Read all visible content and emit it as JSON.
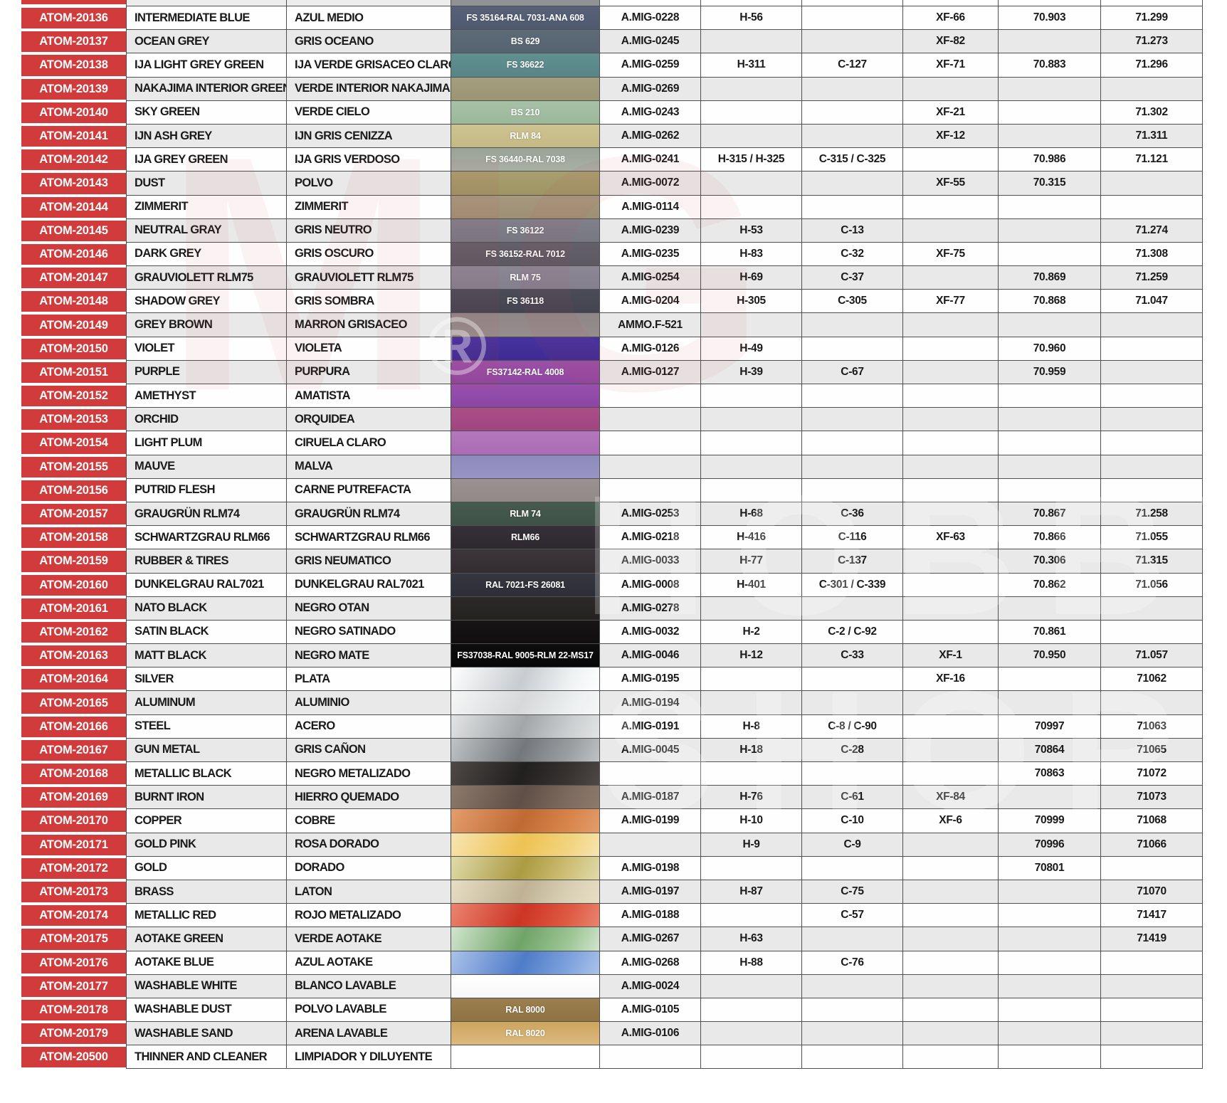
{
  "table": {
    "brand_red": "#d23b3b",
    "stripe_grey": "#e9e9e9",
    "row_white": "#fefefe",
    "border_color": "#4f5052",
    "column_names": [
      "atom-code",
      "name-english",
      "name-spanish",
      "color-swatch",
      "ammo-mig-ref",
      "aqueous-h-ref",
      "mr-color-c-ref",
      "tamiya-xf-ref",
      "vallejo-70-ref",
      "vallejo-71-ref"
    ],
    "top_partial": {
      "swatch_color": "#909294",
      "side_color": "#ededed"
    },
    "watermarks": {
      "mig": "MIG",
      "registered": "®",
      "hobby": "HOBBY",
      "shop": "SHOP"
    },
    "rows": [
      {
        "code": "ATOM-20136",
        "en": "INTERMEDIATE BLUE",
        "es": "AZUL MEDIO",
        "label": "FS 35164-RAL 7031-ANA 608",
        "colors": [
          "#57627a",
          "#4f5a70"
        ],
        "amig": "A.MIG-0228",
        "h": "H-56",
        "c": "",
        "xf": "XF-66",
        "v70": "70.903",
        "v71": "71.299"
      },
      {
        "code": "ATOM-20137",
        "en": "OCEAN GREY",
        "es": "GRIS OCEANO",
        "label": "BS 629",
        "colors": [
          "#5d6b79",
          "#566472"
        ],
        "amig": "A.MIG-0245",
        "h": "",
        "c": "",
        "xf": "XF-82",
        "v70": "",
        "v71": "71.273"
      },
      {
        "code": "ATOM-20138",
        "en": "IJA LIGHT GREY GREEN",
        "es": "IJA VERDE GRISACEO CLARO",
        "label": "FS 36622",
        "colors": [
          "#628f8f",
          "#578588"
        ],
        "amig": "A.MIG-0259",
        "h": "H-311",
        "c": "C-127",
        "xf": "XF-71",
        "v70": "70.883",
        "v71": "71.296"
      },
      {
        "code": "ATOM-20139",
        "en": "NAKAJIMA INTERIOR GREEN",
        "es": "VERDE INTERIOR NAKAJIMA",
        "label": "",
        "colors": [
          "#a39e7e",
          "#9b9574"
        ],
        "amig": "A.MIG-0269",
        "h": "",
        "c": "",
        "xf": "",
        "v70": "",
        "v71": ""
      },
      {
        "code": "ATOM-20140",
        "en": "SKY GREEN",
        "es": "VERDE CIELO",
        "label": "BS 210",
        "colors": [
          "#a6c1a6",
          "#9cb89b"
        ],
        "amig": "A.MIG-0243",
        "h": "",
        "c": "",
        "xf": "XF-21",
        "v70": "",
        "v71": "71.302"
      },
      {
        "code": "ATOM-20141",
        "en": "IJN ASH GREY",
        "es": "IJN GRIS CENIZZA",
        "label": "RLM 84",
        "colors": [
          "#cec492",
          "#c4b983"
        ],
        "amig": "A.MIG-0262",
        "h": "",
        "c": "",
        "xf": "XF-12",
        "v70": "",
        "v71": "71.311"
      },
      {
        "code": "ATOM-20142",
        "en": "IJA GREY GREEN",
        "es": "IJA GRIS VERDOSO",
        "label": "FS 36440-RAL 7038",
        "colors": [
          "#99a398",
          "#a9b0a6"
        ],
        "amig": "A.MIG-0241",
        "h": "H-315 / H-325",
        "c": "C-315 / C-325",
        "xf": "",
        "v70": "70.986",
        "v71": "71.121"
      },
      {
        "code": "ATOM-20143",
        "en": "DUST",
        "es": "POLVO",
        "label": "",
        "colors": [
          "#a89f6f",
          "#9e9464"
        ],
        "amig": "A.MIG-0072",
        "h": "",
        "c": "",
        "xf": "XF-55",
        "v70": "70.315",
        "v71": ""
      },
      {
        "code": "ATOM-20144",
        "en": "ZIMMERIT",
        "es": "ZIMMERIT",
        "label": "",
        "colors": [
          "#a6987f",
          "#9e8f74"
        ],
        "amig": "A.MIG-0114",
        "h": "",
        "c": "",
        "xf": "",
        "v70": "",
        "v71": ""
      },
      {
        "code": "ATOM-20145",
        "en": "NEUTRAL GRAY",
        "es": "GRIS NEUTRO",
        "label": "FS 36122",
        "colors": [
          "#80808a",
          "#787882"
        ],
        "amig": "A.MIG-0239",
        "h": "H-53",
        "c": "C-13",
        "xf": "",
        "v70": "",
        "v71": "71.274"
      },
      {
        "code": "ATOM-20146",
        "en": "DARK GREY",
        "es": "GRIS OSCURO",
        "label": "FS 36152-RAL 7012",
        "colors": [
          "#646069",
          "#5c5962"
        ],
        "amig": "A.MIG-0235",
        "h": "H-83",
        "c": "C-32",
        "xf": "XF-75",
        "v70": "",
        "v71": "71.308"
      },
      {
        "code": "ATOM-20147",
        "en": "GRAUVIOLETT RLM75",
        "es": "GRAUVIOLETT RLM75",
        "label": "RLM 75",
        "colors": [
          "#8c8795",
          "#837f8d"
        ],
        "amig": "A.MIG-0254",
        "h": "H-69",
        "c": "C-37",
        "xf": "",
        "v70": "70.869",
        "v71": "71.259"
      },
      {
        "code": "ATOM-20148",
        "en": "SHADOW GREY",
        "es": "GRIS SOMBRA",
        "label": "FS 36118",
        "colors": [
          "#4b4c58",
          "#434450"
        ],
        "amig": "A.MIG-0204",
        "h": "H-305",
        "c": "C-305",
        "xf": "XF-77",
        "v70": "70.868",
        "v71": "71.047"
      },
      {
        "code": "ATOM-20149",
        "en": "GREY BROWN",
        "es": "MARRON GRISACEO",
        "label": "",
        "colors": [
          "#8f8687",
          "#968d8d"
        ],
        "amig": "AMMO.F-521",
        "h": "",
        "c": "",
        "xf": "",
        "v70": "",
        "v71": ""
      },
      {
        "code": "ATOM-20150",
        "en": "VIOLET",
        "es": "VIOLETA",
        "label": "",
        "colors": [
          "#4733a0",
          "#3e2b92"
        ],
        "amig": "A.MIG-0126",
        "h": "H-49",
        "c": "",
        "xf": "",
        "v70": "70.960",
        "v71": ""
      },
      {
        "code": "ATOM-20151",
        "en": "PURPLE",
        "es": "PURPURA",
        "label": "FS37142-RAL 4008",
        "colors": [
          "#9b51a8",
          "#8f46a0"
        ],
        "amig": "A.MIG-0127",
        "h": "H-39",
        "c": "C-67",
        "xf": "",
        "v70": "70.959",
        "v71": ""
      },
      {
        "code": "ATOM-20152",
        "en": "AMETHYST",
        "es": "AMATISTA",
        "label": "",
        "colors": [
          "#9750ae",
          "#8b46a4"
        ],
        "amig": "",
        "h": "",
        "c": "",
        "xf": "",
        "v70": "",
        "v71": ""
      },
      {
        "code": "ATOM-20153",
        "en": "ORCHID",
        "es": "ORQUIDEA",
        "label": "",
        "colors": [
          "#ab4f89",
          "#a04580"
        ],
        "amig": "",
        "h": "",
        "c": "",
        "xf": "",
        "v70": "",
        "v71": ""
      },
      {
        "code": "ATOM-20154",
        "en": "LIGHT PLUM",
        "es": "CIRUELA CLARO",
        "label": "",
        "colors": [
          "#b377bd",
          "#aa6cb4"
        ],
        "amig": "",
        "h": "",
        "c": "",
        "xf": "",
        "v70": "",
        "v71": ""
      },
      {
        "code": "ATOM-20155",
        "en": "MAUVE",
        "es": "MALVA",
        "label": "",
        "colors": [
          "#8d8abc",
          "#9894c6"
        ],
        "amig": "",
        "h": "",
        "c": "",
        "xf": "",
        "v70": "",
        "v71": ""
      },
      {
        "code": "ATOM-20156",
        "en": "PUTRID FLESH",
        "es": "CARNE PUTREFACTA",
        "label": "",
        "colors": [
          "#9a9190",
          "#918888"
        ],
        "amig": "",
        "h": "",
        "c": "",
        "xf": "",
        "v70": "",
        "v71": ""
      },
      {
        "code": "ATOM-20157",
        "en": "GRAUGRÜN RLM74",
        "es": "GRAUGRÜN RLM74",
        "label": "RLM 74",
        "colors": [
          "#475a4f",
          "#3f5247"
        ],
        "amig": "A.MIG-0253",
        "h": "H-68",
        "c": "C-36",
        "xf": "",
        "v70": "70.867",
        "v71": "71.258"
      },
      {
        "code": "ATOM-20158",
        "en": "SCHWARTZGRAU RLM66",
        "es": "SCHWARTZGRAU RLM66",
        "label": "RLM66",
        "colors": [
          "#353037",
          "#2d292f"
        ],
        "amig": "A.MIG-0218",
        "h": "H-416",
        "c": "C-116",
        "xf": "XF-63",
        "v70": "70.866",
        "v71": "71.055"
      },
      {
        "code": "ATOM-20159",
        "en": "RUBBER & TIRES",
        "es": "GRIS NEUMATICO",
        "label": "",
        "colors": [
          "#3c353a",
          "#332d32"
        ],
        "amig": "A.MIG-0033",
        "h": "H-77",
        "c": "C-137",
        "xf": "",
        "v70": "70.306",
        "v71": "71.315"
      },
      {
        "code": "ATOM-20160",
        "en": "DUNKELGRAU RAL7021",
        "es": "DUNKELGRAU RAL7021",
        "label": "RAL 7021-FS 26081",
        "colors": [
          "#35363f",
          "#2d2e37"
        ],
        "amig": "A.MIG-0008",
        "h": "H-401",
        "c": "C-301 / C-339",
        "xf": "",
        "v70": "70.862",
        "v71": "71.056"
      },
      {
        "code": "ATOM-20161",
        "en": "NATO BLACK",
        "es": "NEGRO OTAN",
        "label": "",
        "colors": [
          "#2c2928",
          "#242121"
        ],
        "amig": "A.MIG-0278",
        "h": "",
        "c": "",
        "xf": "",
        "v70": "",
        "v71": ""
      },
      {
        "code": "ATOM-20162",
        "en": "SATIN BLACK",
        "es": "NEGRO SATINADO",
        "label": "",
        "colors": [
          "#171516",
          "#100e0f"
        ],
        "amig": "A.MIG-0032",
        "h": "H-2",
        "c": "C-2 / C-92",
        "xf": "",
        "v70": "70.861",
        "v71": ""
      },
      {
        "code": "ATOM-20163",
        "en": "MATT BLACK",
        "es": "NEGRO MATE",
        "label": "FS37038-RAL 9005-RLM 22-MS17",
        "colors": [
          "#0e0d0e",
          "#080808"
        ],
        "amig": "A.MIG-0046",
        "h": "H-12",
        "c": "C-33",
        "xf": "XF-1",
        "v70": "70.950",
        "v71": "71.057"
      },
      {
        "code": "ATOM-20164",
        "en": "SILVER",
        "es": "PLATA",
        "label": "",
        "colors": [
          "#ffffff",
          "#c8ccd0",
          "#eef1f2"
        ],
        "amig": "A.MIG-0195",
        "h": "",
        "c": "",
        "xf": "XF-16",
        "v70": "",
        "v71": "71062"
      },
      {
        "code": "ATOM-20165",
        "en": "ALUMINUM",
        "es": "ALUMINIO",
        "label": "",
        "colors": [
          "#f6f6f6",
          "#d6d8da",
          "#ebeeef"
        ],
        "amig": "A.MIG-0194",
        "h": "",
        "c": "",
        "xf": "",
        "v70": "",
        "v71": ""
      },
      {
        "code": "ATOM-20166",
        "en": "STEEL",
        "es": "ACERO",
        "label": "",
        "colors": [
          "#e2e4e5",
          "#a2a6a9",
          "#cbced0"
        ],
        "amig": "A.MIG-0191",
        "h": "H-8",
        "c": "C-8 / C-90",
        "xf": "",
        "v70": "70997",
        "v71": "71063"
      },
      {
        "code": "ATOM-20167",
        "en": "GUN METAL",
        "es": "GRIS CAÑON",
        "label": "",
        "colors": [
          "#c0c3c5",
          "#74787c",
          "#9b9ea1"
        ],
        "amig": "A.MIG-0045",
        "h": "H-18",
        "c": "C-28",
        "xf": "",
        "v70": "70864",
        "v71": "71065"
      },
      {
        "code": "ATOM-20168",
        "en": "METALLIC BLACK",
        "es": "NEGRO METALIZADO",
        "label": "",
        "colors": [
          "#4e4946",
          "#221f1f",
          "#383331"
        ],
        "amig": "",
        "h": "",
        "c": "",
        "xf": "",
        "v70": "70863",
        "v71": "71072"
      },
      {
        "code": "ATOM-20169",
        "en": "BURNT IRON",
        "es": "HIERRO QUEMADO",
        "label": "",
        "colors": [
          "#8d7a6c",
          "#604f46",
          "#7e6b5f"
        ],
        "amig": "A.MIG-0187",
        "h": "H-76",
        "c": "C-61",
        "xf": "XF-84",
        "v70": "",
        "v71": "71073"
      },
      {
        "code": "ATOM-20170",
        "en": "COPPER",
        "es": "COBRE",
        "label": "",
        "colors": [
          "#e39d6c",
          "#c06a33",
          "#d8854b"
        ],
        "amig": "A.MIG-0199",
        "h": "H-10",
        "c": "C-10",
        "xf": "XF-6",
        "v70": "70999",
        "v71": "71068"
      },
      {
        "code": "ATOM-20171",
        "en": "GOLD PINK",
        "es": "ROSA DORADO",
        "label": "",
        "colors": [
          "#f7e5b2",
          "#eec253",
          "#f2d47f"
        ],
        "amig": "",
        "h": "H-9",
        "c": "C-9",
        "xf": "",
        "v70": "70996",
        "v71": "71066"
      },
      {
        "code": "ATOM-20172",
        "en": "GOLD",
        "es": "DORADO",
        "label": "",
        "colors": [
          "#e0dbaa",
          "#ab9b43",
          "#cec077"
        ],
        "amig": "A.MIG-0198",
        "h": "",
        "c": "",
        "xf": "",
        "v70": "70801",
        "v71": ""
      },
      {
        "code": "ATOM-20173",
        "en": "BRASS",
        "es": "LATON",
        "label": "",
        "colors": [
          "#e7dec4",
          "#bfb293",
          "#d9d0b5"
        ],
        "amig": "A.MIG-0197",
        "h": "H-87",
        "c": "C-75",
        "xf": "",
        "v70": "",
        "v71": "71070"
      },
      {
        "code": "ATOM-20174",
        "en": "METALLIC RED",
        "es": "ROJO METALIZADO",
        "label": "",
        "colors": [
          "#ea8470",
          "#cd3524",
          "#df5b43"
        ],
        "amig": "A.MIG-0188",
        "h": "",
        "c": "C-57",
        "xf": "",
        "v70": "",
        "v71": "71417"
      },
      {
        "code": "ATOM-20175",
        "en": "AOTAKE GREEN",
        "es": "VERDE AOTAKE",
        "label": "",
        "colors": [
          "#d2e5ce",
          "#6fa468",
          "#9dc595"
        ],
        "amig": "A.MIG-0267",
        "h": "H-63",
        "c": "",
        "xf": "",
        "v70": "",
        "v71": "71419"
      },
      {
        "code": "ATOM-20176",
        "en": "AOTAKE BLUE",
        "es": "AZUL AOTAKE",
        "label": "",
        "colors": [
          "#abc2e9",
          "#4f7cc9",
          "#7ea3dd"
        ],
        "amig": "A.MIG-0268",
        "h": "H-88",
        "c": "C-76",
        "xf": "",
        "v70": "",
        "v71": ""
      },
      {
        "code": "ATOM-20177",
        "en": "WASHABLE WHITE",
        "es": "BLANCO LAVABLE",
        "label": "",
        "colors": [
          "#ffffff",
          "#f7f7f7"
        ],
        "amig": "A.MIG-0024",
        "h": "",
        "c": "",
        "xf": "",
        "v70": "",
        "v71": ""
      },
      {
        "code": "ATOM-20178",
        "en": "WASHABLE DUST",
        "es": "POLVO LAVABLE",
        "label": "RAL 8000",
        "colors": [
          "#9c7f4e",
          "#8f7342"
        ],
        "amig": "A.MIG-0105",
        "h": "",
        "c": "",
        "xf": "",
        "v70": "",
        "v71": ""
      },
      {
        "code": "ATOM-20179",
        "en": "WASHABLE SAND",
        "es": "ARENA LAVABLE",
        "label": "RAL 8020",
        "colors": [
          "#cda55e",
          "#dcb97e"
        ],
        "amig": "A.MIG-0106",
        "h": "",
        "c": "",
        "xf": "",
        "v70": "",
        "v71": ""
      },
      {
        "code": "ATOM-20500",
        "en": "THINNER AND  CLEANER",
        "es": "LIMPIADOR Y DILUYENTE",
        "label": "",
        "colors": [
          "#ffffff",
          "#ffffff"
        ],
        "amig": "",
        "h": "",
        "c": "",
        "xf": "",
        "v70": "",
        "v71": ""
      }
    ]
  }
}
